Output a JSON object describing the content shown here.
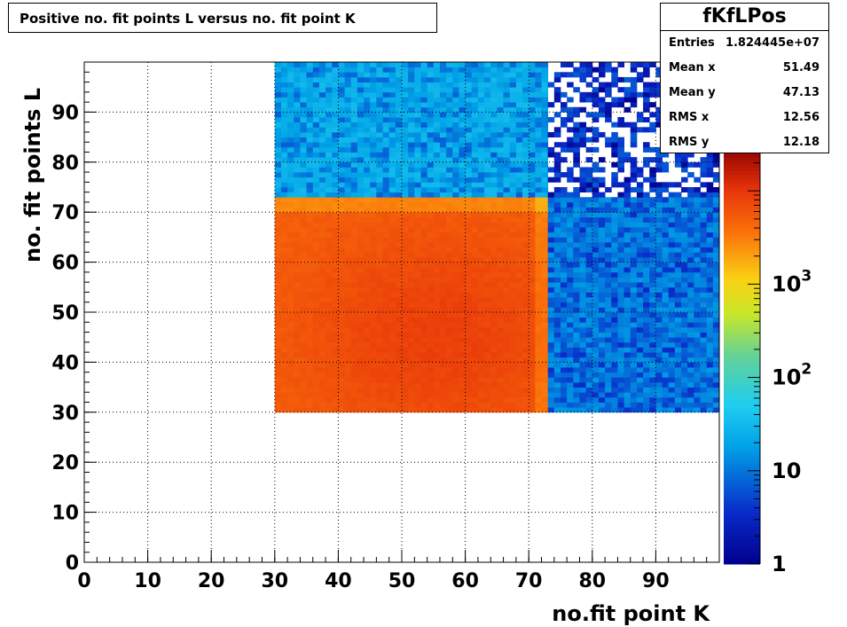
{
  "title": "Positive no. fit points L versus no. fit point K",
  "stats": {
    "name": "fKfLPos",
    "rows": [
      {
        "label": "Entries",
        "value": "1.824445e+07"
      },
      {
        "label": "Mean x",
        "value": "51.49"
      },
      {
        "label": "Mean y",
        "value": "47.13"
      },
      {
        "label": "RMS x",
        "value": "12.56"
      },
      {
        "label": "RMS y",
        "value": "12.18"
      }
    ]
  },
  "chart_data": {
    "type": "heatmap",
    "title": "Positive no. fit points L versus no. fit point K",
    "xlabel": "no.fit point K",
    "ylabel": "no. fit points  L",
    "xlim": [
      0,
      100
    ],
    "ylim": [
      0,
      100
    ],
    "x_ticks": [
      0,
      10,
      20,
      30,
      40,
      50,
      60,
      70,
      80,
      90
    ],
    "y_ticks": [
      0,
      10,
      20,
      30,
      40,
      50,
      60,
      70,
      80,
      90
    ],
    "grid": true,
    "color_scale": "log",
    "z_range": [
      1,
      30000
    ],
    "z_ticks": [
      {
        "value": 1,
        "label": "1"
      },
      {
        "value": 10,
        "label": "10"
      },
      {
        "value": 100,
        "label": "10",
        "sup": "2"
      },
      {
        "value": 1000,
        "label": "10",
        "sup": "3"
      }
    ],
    "regions": [
      {
        "x": [
          30,
          73
        ],
        "y": [
          30,
          73
        ],
        "z_approx": 6000,
        "description": "dense core"
      },
      {
        "x": [
          30,
          73
        ],
        "y": [
          73,
          100
        ],
        "z_approx": 20
      },
      {
        "x": [
          73,
          100
        ],
        "y": [
          30,
          73
        ],
        "z_approx": 10
      },
      {
        "x": [
          73,
          100
        ],
        "y": [
          73,
          100
        ],
        "z_approx": 2
      }
    ],
    "bin_width": 1
  }
}
